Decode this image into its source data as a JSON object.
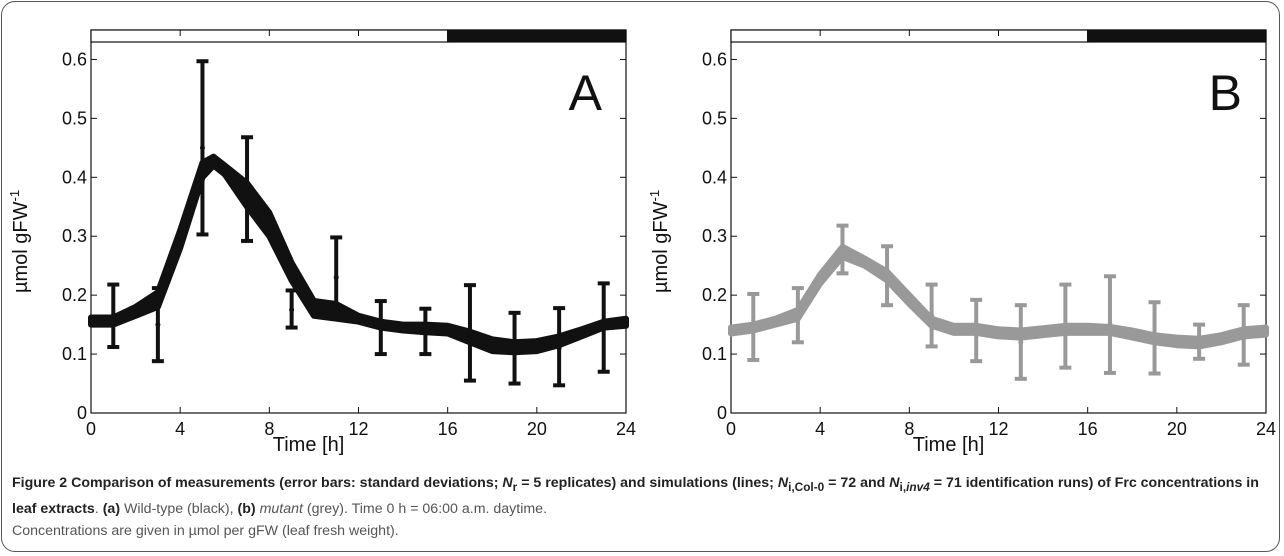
{
  "figure": {
    "caption_label": "Figure 2",
    "caption_title_1": " Comparison of measurements (error bars: standard deviations; ",
    "caption_nr_sym": "N",
    "caption_nr_sub": "r",
    "caption_title_2": " = 5 replicates) and simulations (lines; ",
    "caption_ni_sym": "N",
    "caption_ni_sub": "i,Col-0",
    "caption_title_3": " = 72 and ",
    "caption_ni2_sym": "N",
    "caption_ni2_sub_a": "i,",
    "caption_ni2_sub_b": "inv4",
    "caption_title_4": " = 71 identification runs) of Frc concentrations in leaf extracts",
    "caption_period": ". ",
    "caption_a_label": "(a)",
    "caption_a_text": " Wild-type (black), ",
    "caption_b_label": "(b)",
    "caption_b_italic": "mutant",
    "caption_b_text": " (grey). Time 0 h = 06:00 a.m. daytime.",
    "caption_line3": "Concentrations are given in µmol per gFW (leaf fresh weight)."
  },
  "chart_data": [
    {
      "type": "line",
      "panel_label": "A",
      "xlabel": "Time [h]",
      "ylabel": "µmol gFW",
      "ylabel_sup": "-1",
      "xlim": [
        0,
        24
      ],
      "ylim": [
        0,
        0.65
      ],
      "xticks": [
        0,
        4,
        8,
        12,
        16,
        20,
        24
      ],
      "yticks": [
        0,
        0.1,
        0.2,
        0.3,
        0.4,
        0.5,
        0.6
      ],
      "ytick_labels": [
        "0",
        "0.1",
        "0.2",
        "0.3",
        "0.4",
        "0.5",
        "0.6"
      ],
      "grid": false,
      "light_period_h": [
        0,
        16
      ],
      "dark_period_h": [
        16,
        24
      ],
      "color": "#111111",
      "simulation_band": {
        "x": [
          0,
          1,
          2,
          3,
          4,
          5,
          5.5,
          6,
          7,
          8,
          9,
          10,
          11,
          12,
          13,
          14,
          15,
          16,
          17,
          18,
          19,
          20,
          21,
          22,
          23,
          24
        ],
        "lower": [
          0.15,
          0.15,
          0.165,
          0.18,
          0.28,
          0.4,
          0.42,
          0.405,
          0.35,
          0.3,
          0.225,
          0.165,
          0.16,
          0.155,
          0.145,
          0.14,
          0.137,
          0.135,
          0.12,
          0.105,
          0.103,
          0.105,
          0.115,
          0.13,
          0.145,
          0.148
        ],
        "upper": [
          0.162,
          0.162,
          0.18,
          0.205,
          0.31,
          0.425,
          0.435,
          0.42,
          0.39,
          0.34,
          0.255,
          0.19,
          0.185,
          0.165,
          0.155,
          0.15,
          0.15,
          0.148,
          0.138,
          0.125,
          0.12,
          0.122,
          0.13,
          0.142,
          0.155,
          0.16
        ]
      },
      "measurements": {
        "x": [
          1,
          3,
          5,
          7,
          9,
          11,
          13,
          15,
          17,
          19,
          21,
          23
        ],
        "mean": [
          0.165,
          0.15,
          0.45,
          0.38,
          0.175,
          0.23,
          0.145,
          0.14,
          0.135,
          0.11,
          0.11,
          0.145
        ],
        "lower": [
          0.112,
          0.088,
          0.303,
          0.292,
          0.145,
          0.16,
          0.1,
          0.1,
          0.055,
          0.05,
          0.047,
          0.07
        ],
        "upper": [
          0.218,
          0.212,
          0.597,
          0.468,
          0.208,
          0.298,
          0.19,
          0.177,
          0.217,
          0.17,
          0.178,
          0.22
        ]
      }
    },
    {
      "type": "line",
      "panel_label": "B",
      "xlabel": "Time [h]",
      "ylabel": "µmol gFW",
      "ylabel_sup": "-1",
      "xlim": [
        0,
        24
      ],
      "ylim": [
        0,
        0.65
      ],
      "xticks": [
        0,
        4,
        8,
        12,
        16,
        20,
        24
      ],
      "yticks": [
        0,
        0.1,
        0.2,
        0.3,
        0.4,
        0.5,
        0.6
      ],
      "ytick_labels": [
        "0",
        "0.1",
        "0.2",
        "0.3",
        "0.4",
        "0.5",
        "0.6"
      ],
      "grid": false,
      "light_period_h": [
        0,
        16
      ],
      "dark_period_h": [
        16,
        24
      ],
      "color": "#999999",
      "simulation_band": {
        "x": [
          0,
          1,
          2,
          3,
          4,
          5,
          6,
          7,
          8,
          9,
          10,
          11,
          12,
          13,
          14,
          15,
          16,
          17,
          18,
          19,
          20,
          21,
          22,
          23,
          24
        ],
        "lower": [
          0.135,
          0.14,
          0.15,
          0.16,
          0.22,
          0.265,
          0.25,
          0.225,
          0.185,
          0.148,
          0.136,
          0.136,
          0.13,
          0.128,
          0.132,
          0.136,
          0.136,
          0.136,
          0.128,
          0.12,
          0.115,
          0.113,
          0.12,
          0.13,
          0.133
        ],
        "upper": [
          0.145,
          0.15,
          0.16,
          0.175,
          0.235,
          0.282,
          0.262,
          0.24,
          0.2,
          0.16,
          0.148,
          0.148,
          0.142,
          0.14,
          0.144,
          0.148,
          0.148,
          0.146,
          0.14,
          0.132,
          0.128,
          0.126,
          0.132,
          0.142,
          0.145
        ]
      },
      "measurements": {
        "x": [
          1,
          3,
          5,
          7,
          9,
          11,
          13,
          15,
          17,
          19,
          21,
          23
        ],
        "mean": [
          0.145,
          0.165,
          0.277,
          0.233,
          0.165,
          0.14,
          0.12,
          0.148,
          0.15,
          0.128,
          0.12,
          0.133
        ],
        "lower": [
          0.09,
          0.12,
          0.237,
          0.183,
          0.113,
          0.088,
          0.058,
          0.077,
          0.068,
          0.067,
          0.092,
          0.082
        ],
        "upper": [
          0.202,
          0.212,
          0.318,
          0.283,
          0.218,
          0.192,
          0.183,
          0.218,
          0.232,
          0.188,
          0.15,
          0.183
        ]
      }
    }
  ]
}
